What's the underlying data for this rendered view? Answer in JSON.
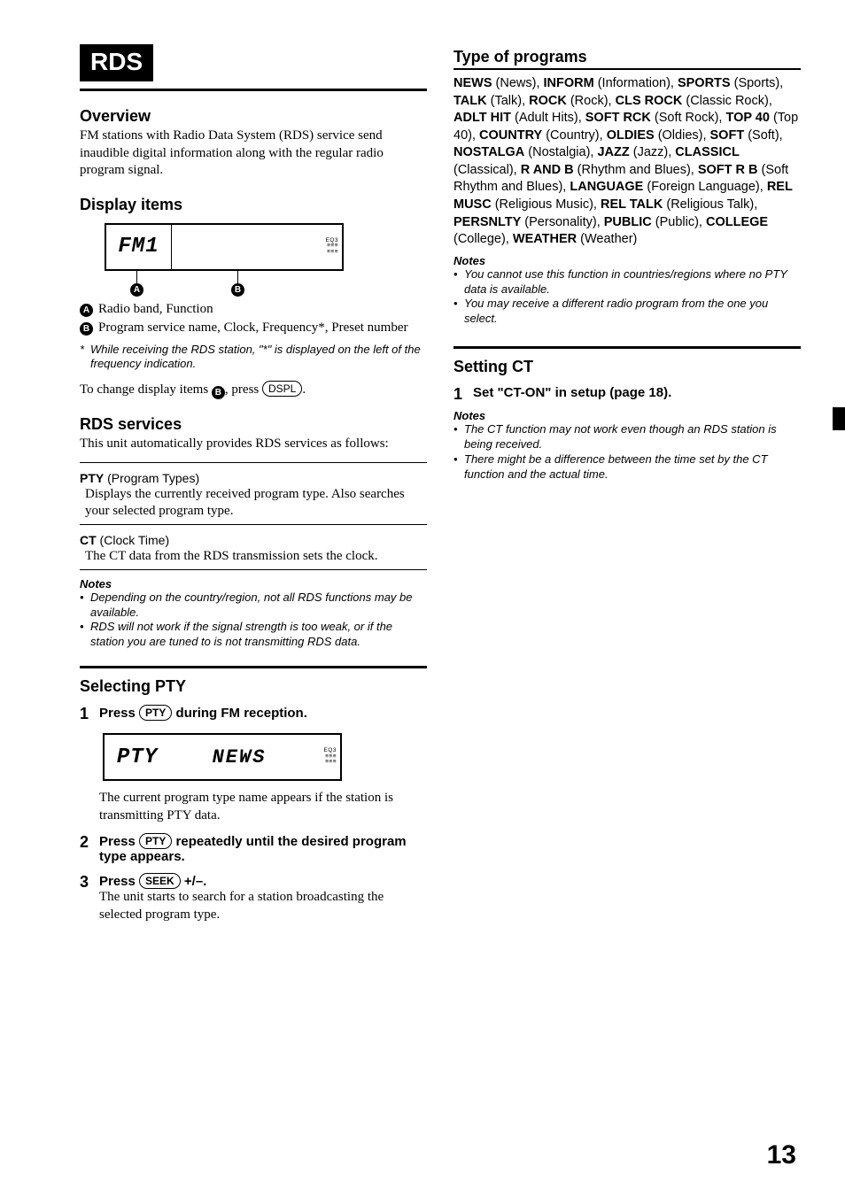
{
  "page_number": "13",
  "left": {
    "rds_label": "RDS",
    "overview_h": "Overview",
    "overview_p": "FM stations with Radio Data System (RDS) service send inaudible digital information along with the regular radio program signal.",
    "display_items_h": "Display items",
    "lcd1": {
      "left": "FM1",
      "mid": "",
      "right_l1": "EQ3",
      "right_l2": "≡≡≡",
      "right_l3": "≡≡≡"
    },
    "callout_a_label": "A",
    "callout_b_label": "B",
    "callout_a_text": "Radio band, Function",
    "callout_b_text": "Program service name, Clock, Frequency*, Preset number",
    "footnote_ast": "*",
    "footnote_text": "While receiving the RDS station, \"*\" is displayed on the left of the frequency indication.",
    "change_pre": "To change display items ",
    "change_post": ", press ",
    "change_end": ".",
    "dspl_chip": "DSPL",
    "rds_services_h": "RDS services",
    "rds_services_p": "This unit automatically provides RDS services as follows:",
    "pty_bold": "PTY",
    "pty_paren": " (Program Types)",
    "pty_desc": "Displays the currently received program type. Also searches your selected program type.",
    "ct_bold": "CT",
    "ct_paren": " (Clock Time)",
    "ct_desc": "The CT data from the RDS transmission sets the clock.",
    "notes_h": "Notes",
    "note1": "Depending on the country/region, not all RDS functions may be available.",
    "note2": "RDS will not work if the signal strength is too weak, or if the station you are tuned to is not transmitting RDS data.",
    "selecting_pty_h": "Selecting PTY",
    "step1_num": "1",
    "step1_pre": "Press ",
    "pty_chip": "PTY",
    "step1_post": " during FM reception.",
    "lcd2": {
      "left": "PTY",
      "mid": "NEWS",
      "right_l1": "EQ3",
      "right_l2": "≡≡≡",
      "right_l3": "≡≡≡"
    },
    "step1_desc": "The current program type name appears if the station is transmitting PTY data.",
    "step2_num": "2",
    "step2_pre": "Press ",
    "step2_post": " repeatedly until the desired program type appears.",
    "step3_num": "3",
    "step3_pre": "Press ",
    "seek_chip": "SEEK",
    "step3_post": " +/–.",
    "step3_desc": "The unit starts to search for a station broadcasting the selected program type."
  },
  "right": {
    "type_programs_h": "Type of programs",
    "pty_types": [
      [
        "NEWS",
        "News"
      ],
      [
        "INFORM",
        "Information"
      ],
      [
        "SPORTS",
        "Sports"
      ],
      [
        "TALK",
        "Talk"
      ],
      [
        "ROCK",
        "Rock"
      ],
      [
        "CLS ROCK",
        "Classic Rock"
      ],
      [
        "ADLT HIT",
        "Adult Hits"
      ],
      [
        "SOFT RCK",
        "Soft Rock"
      ],
      [
        "TOP 40",
        "Top 40"
      ],
      [
        "COUNTRY",
        "Country"
      ],
      [
        "OLDIES",
        "Oldies"
      ],
      [
        "SOFT",
        "Soft"
      ],
      [
        "NOSTALGA",
        "Nostalgia"
      ],
      [
        "JAZZ",
        "Jazz"
      ],
      [
        "CLASSICL",
        "Classical"
      ],
      [
        "R AND B",
        "Rhythm and Blues"
      ],
      [
        "SOFT R B",
        "Soft Rhythm and Blues"
      ],
      [
        "LANGUAGE",
        "Foreign Language"
      ],
      [
        "REL MUSC",
        "Religious Music"
      ],
      [
        "REL TALK",
        "Religious Talk"
      ],
      [
        "PERSNLTY",
        "Personality"
      ],
      [
        "PUBLIC",
        "Public"
      ],
      [
        "COLLEGE",
        "College"
      ],
      [
        "WEATHER",
        "Weather"
      ]
    ],
    "notes_h": "Notes",
    "note1": "You cannot use this function in countries/regions where no PTY data is available.",
    "note2": "You may receive a different radio program from the one you select.",
    "setting_ct_h": "Setting CT",
    "ct_step_num": "1",
    "ct_step_text": "Set \"CT-ON\" in setup (page 18).",
    "ct_notes_h": "Notes",
    "ct_note1": "The CT function may not work even though an RDS station is being received.",
    "ct_note2": "There might be a difference between the time set by the CT function and the actual time."
  }
}
